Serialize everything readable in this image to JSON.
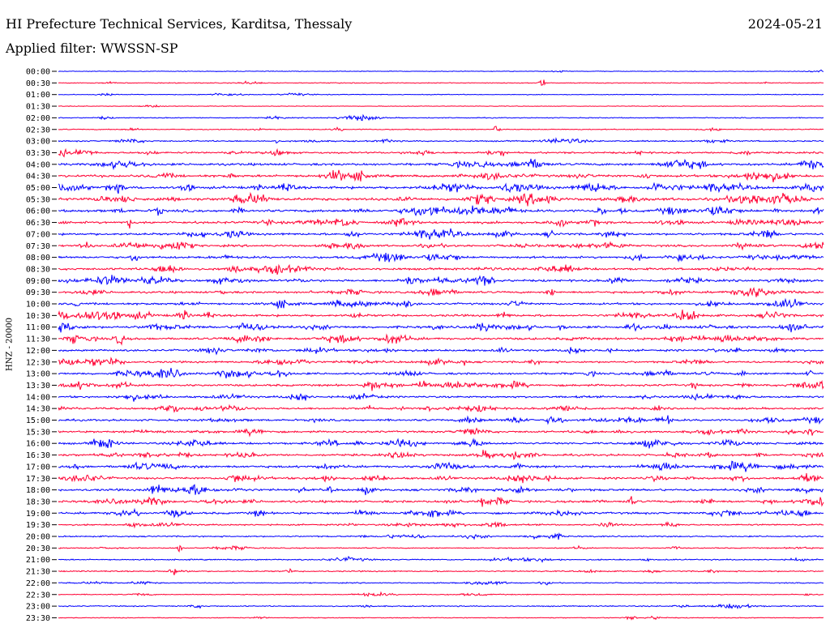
{
  "header": {
    "title": "HI Prefecture Technical Services, Karditsa, Thessaly",
    "date": "2024-05-21",
    "filter": "Applied filter: WWSSN-SP"
  },
  "chart_data": {
    "type": "line",
    "ylabel": "HNZ - 20000",
    "ytick_labels": [
      "00:00",
      "00:30",
      "01:00",
      "01:30",
      "02:00",
      "02:30",
      "03:00",
      "03:30",
      "04:00",
      "04:30",
      "05:00",
      "05:30",
      "06:00",
      "06:30",
      "07:00",
      "07:30",
      "08:00",
      "08:30",
      "09:00",
      "09:30",
      "10:00",
      "10:30",
      "11:00",
      "11:30",
      "12:00",
      "12:30",
      "13:00",
      "13:30",
      "14:00",
      "14:30",
      "15:00",
      "15:30",
      "16:00",
      "16:30",
      "17:00",
      "17:30",
      "18:00",
      "18:30",
      "19:00",
      "19:30",
      "20:00",
      "20:30",
      "21:00",
      "21:30",
      "22:00",
      "22:30",
      "23:00",
      "23:30"
    ],
    "series_colors": [
      "#0000ff",
      "#ff0033"
    ],
    "grid": false,
    "activity_per_trace": [
      0.05,
      0.12,
      0.1,
      0.03,
      0.15,
      0.18,
      0.3,
      0.45,
      0.65,
      0.65,
      0.75,
      0.8,
      0.7,
      0.65,
      0.6,
      0.55,
      0.6,
      0.6,
      0.6,
      0.55,
      0.55,
      0.6,
      0.65,
      0.6,
      0.55,
      0.5,
      0.55,
      0.55,
      0.5,
      0.5,
      0.55,
      0.5,
      0.55,
      0.55,
      0.6,
      0.55,
      0.6,
      0.6,
      0.55,
      0.35,
      0.3,
      0.2,
      0.25,
      0.25,
      0.2,
      0.15,
      0.2,
      0.12
    ]
  }
}
